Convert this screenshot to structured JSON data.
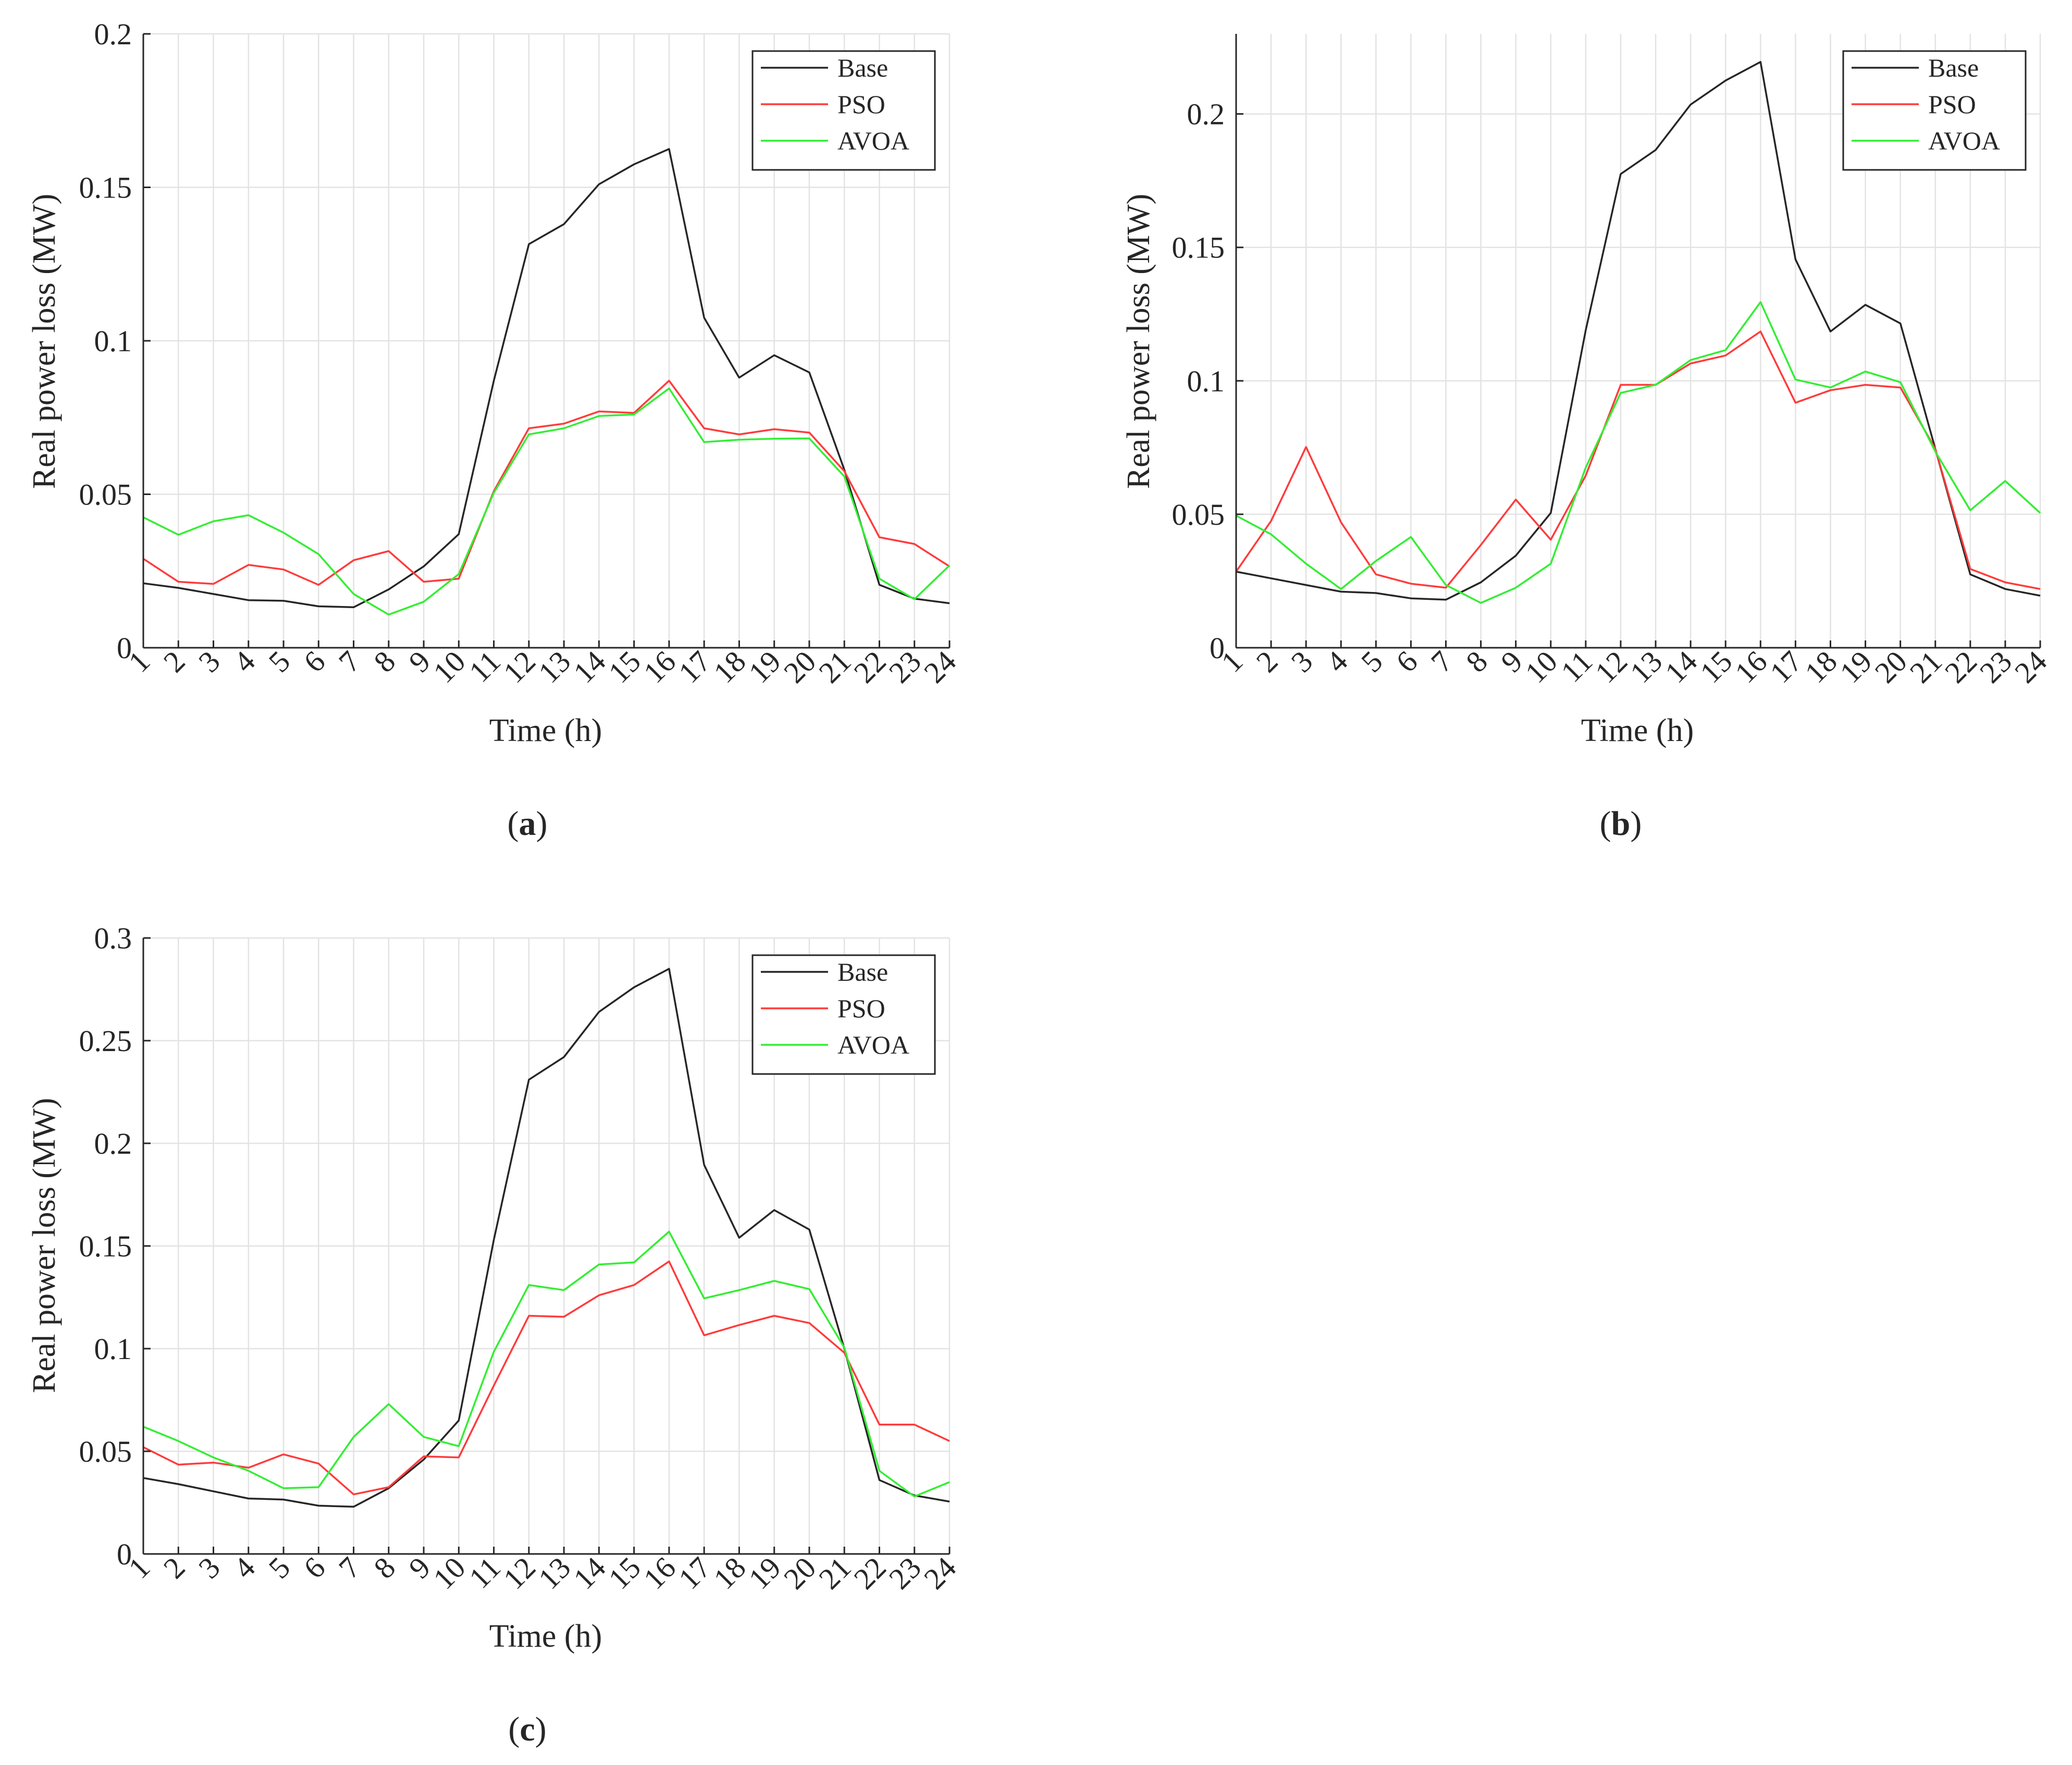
{
  "colors": {
    "Base": "#262626",
    "PSO": "#ff3b3b",
    "AVOA": "#33ee33"
  },
  "chart_data": [
    {
      "type": "line",
      "caption_letter": "a",
      "xlabel": "Time (h)",
      "ylabel": "Real power loss (MW)",
      "x": [
        1,
        2,
        3,
        4,
        5,
        6,
        7,
        8,
        9,
        10,
        11,
        12,
        13,
        14,
        15,
        16,
        17,
        18,
        19,
        20,
        21,
        22,
        23,
        24
      ],
      "ylim": [
        0,
        0.2
      ],
      "yticks": [
        0,
        0.05,
        0.1,
        0.15,
        0.2
      ],
      "ytick_labels": [
        "0",
        "0.05",
        "0.1",
        "0.15",
        "0.2"
      ],
      "grid": true,
      "legend_position": "top-right",
      "series": [
        {
          "name": "Base",
          "values": [
            0.021,
            0.0195,
            0.0175,
            0.0155,
            0.0153,
            0.0135,
            0.0132,
            0.019,
            0.0265,
            0.037,
            0.087,
            0.1315,
            0.138,
            0.151,
            0.1575,
            0.1625,
            0.1075,
            0.088,
            0.0953,
            0.0897,
            0.058,
            0.0205,
            0.016,
            0.0145
          ]
        },
        {
          "name": "PSO",
          "values": [
            0.029,
            0.0215,
            0.0208,
            0.027,
            0.0255,
            0.0205,
            0.0285,
            0.0315,
            0.0215,
            0.0225,
            0.051,
            0.0715,
            0.073,
            0.077,
            0.0765,
            0.087,
            0.0715,
            0.0695,
            0.0712,
            0.0701,
            0.0575,
            0.036,
            0.0338,
            0.0265
          ]
        },
        {
          "name": "AVOA",
          "values": [
            0.0425,
            0.0368,
            0.0412,
            0.0432,
            0.0375,
            0.0305,
            0.0175,
            0.0108,
            0.015,
            0.024,
            0.0505,
            0.0695,
            0.0715,
            0.0755,
            0.076,
            0.0845,
            0.067,
            0.0678,
            0.0681,
            0.0682,
            0.0558,
            0.0225,
            0.0158,
            0.0268
          ]
        }
      ]
    },
    {
      "type": "line",
      "caption_letter": "b",
      "xlabel": "Time (h)",
      "ylabel": "Real power loss (MW)",
      "x": [
        1,
        2,
        3,
        4,
        5,
        6,
        7,
        8,
        9,
        10,
        11,
        12,
        13,
        14,
        15,
        16,
        17,
        18,
        19,
        20,
        21,
        22,
        23,
        24
      ],
      "ylim": [
        0,
        0.23
      ],
      "yticks": [
        0,
        0.05,
        0.1,
        0.15,
        0.2
      ],
      "ytick_labels": [
        "0",
        "0.05",
        "0.1",
        "0.15",
        "0.2"
      ],
      "grid": true,
      "legend_position": "top-right",
      "series": [
        {
          "name": "Base",
          "values": [
            0.0285,
            0.026,
            0.0235,
            0.021,
            0.0205,
            0.0185,
            0.018,
            0.0245,
            0.0345,
            0.0505,
            0.119,
            0.1775,
            0.1865,
            0.2035,
            0.2125,
            0.2195,
            0.1455,
            0.1185,
            0.1285,
            0.1215,
            0.0745,
            0.0275,
            0.022,
            0.0195
          ]
        },
        {
          "name": "PSO",
          "values": [
            0.0285,
            0.0475,
            0.0752,
            0.047,
            0.0275,
            0.024,
            0.0225,
            0.0385,
            0.0555,
            0.0405,
            0.0645,
            0.0985,
            0.0985,
            0.1065,
            0.1095,
            0.1185,
            0.0918,
            0.0965,
            0.0985,
            0.0975,
            0.0745,
            0.0295,
            0.0245,
            0.022
          ]
        },
        {
          "name": "AVOA",
          "values": [
            0.0495,
            0.0425,
            0.0315,
            0.022,
            0.0325,
            0.0415,
            0.0235,
            0.0168,
            0.0225,
            0.0315,
            0.0675,
            0.0955,
            0.0985,
            0.1078,
            0.1115,
            0.1295,
            0.1005,
            0.0975,
            0.1035,
            0.0995,
            0.0735,
            0.0515,
            0.0625,
            0.0505
          ]
        }
      ]
    },
    {
      "type": "line",
      "caption_letter": "c",
      "xlabel": "Time (h)",
      "ylabel": "Real power loss (MW)",
      "x": [
        1,
        2,
        3,
        4,
        5,
        6,
        7,
        8,
        9,
        10,
        11,
        12,
        13,
        14,
        15,
        16,
        17,
        18,
        19,
        20,
        21,
        22,
        23,
        24
      ],
      "ylim": [
        0,
        0.3
      ],
      "yticks": [
        0,
        0.05,
        0.1,
        0.15,
        0.2,
        0.25,
        0.3
      ],
      "ytick_labels": [
        "0",
        "0.05",
        "0.1",
        "0.15",
        "0.2",
        "0.25",
        "0.3"
      ],
      "grid": true,
      "legend_position": "top-right",
      "series": [
        {
          "name": "Base",
          "values": [
            0.037,
            0.034,
            0.0305,
            0.027,
            0.0265,
            0.0235,
            0.023,
            0.032,
            0.046,
            0.065,
            0.153,
            0.231,
            0.242,
            0.264,
            0.276,
            0.285,
            0.1895,
            0.154,
            0.1675,
            0.158,
            0.1,
            0.036,
            0.0285,
            0.0255
          ]
        },
        {
          "name": "PSO",
          "values": [
            0.052,
            0.0435,
            0.0445,
            0.042,
            0.0485,
            0.044,
            0.029,
            0.0325,
            0.0475,
            0.047,
            0.082,
            0.116,
            0.1155,
            0.126,
            0.131,
            0.1425,
            0.1065,
            0.1115,
            0.116,
            0.1125,
            0.098,
            0.063,
            0.063,
            0.055
          ]
        },
        {
          "name": "AVOA",
          "values": [
            0.062,
            0.055,
            0.047,
            0.0405,
            0.032,
            0.0325,
            0.057,
            0.073,
            0.057,
            0.0525,
            0.0985,
            0.131,
            0.1285,
            0.141,
            0.142,
            0.157,
            0.1245,
            0.1285,
            0.133,
            0.129,
            0.1005,
            0.0405,
            0.028,
            0.035
          ]
        }
      ]
    }
  ]
}
